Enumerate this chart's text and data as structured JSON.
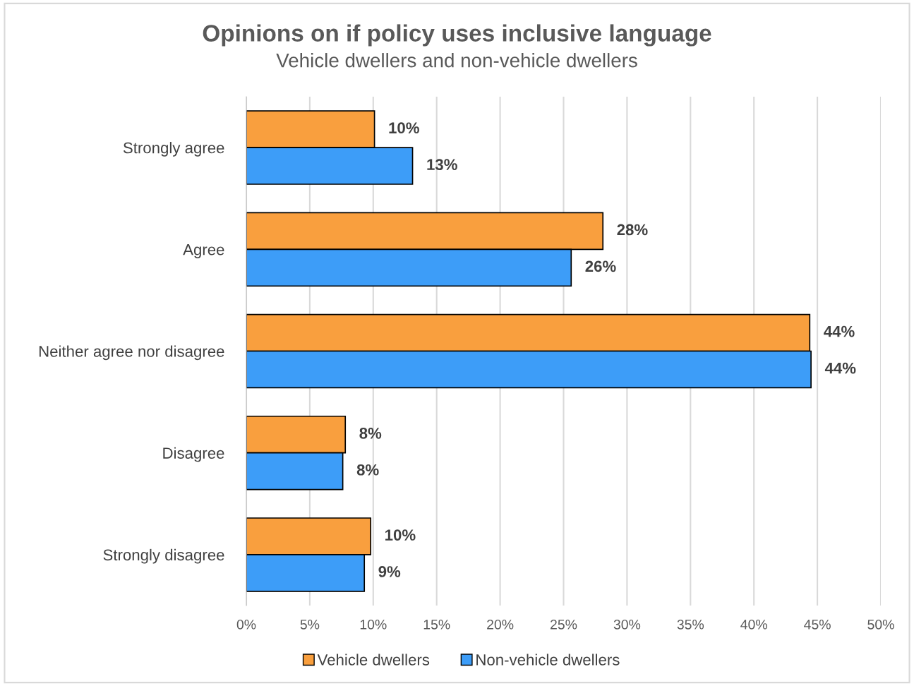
{
  "chart_data": {
    "type": "bar",
    "orientation": "horizontal",
    "title": "Opinions on if policy uses inclusive language",
    "subtitle": "Vehicle dwellers and non-vehicle dwellers",
    "categories": [
      "Strongly agree",
      "Agree",
      "Neither agree nor disagree",
      "Disagree",
      "Strongly disagree"
    ],
    "series": [
      {
        "name": "Vehicle dwellers",
        "color": "#f99f3e",
        "values": [
          10.1,
          28.1,
          44.4,
          7.8,
          9.8
        ],
        "value_labels": [
          "10%",
          "28%",
          "44%",
          "8%",
          "10%"
        ]
      },
      {
        "name": "Non-vehicle dwellers",
        "color": "#3d9df8",
        "values": [
          13.1,
          25.6,
          44.5,
          7.6,
          9.3
        ],
        "value_labels": [
          "13%",
          "26%",
          "44%",
          "8%",
          "9%"
        ]
      }
    ],
    "xlim": [
      0,
      50
    ],
    "xticks": [
      {
        "value": 0,
        "label": "0%"
      },
      {
        "value": 5,
        "label": "5%"
      },
      {
        "value": 10,
        "label": "10%"
      },
      {
        "value": 15,
        "label": "15%"
      },
      {
        "value": 20,
        "label": "20%"
      },
      {
        "value": 25,
        "label": "25%"
      },
      {
        "value": 30,
        "label": "30%"
      },
      {
        "value": 35,
        "label": "35%"
      },
      {
        "value": 40,
        "label": "40%"
      },
      {
        "value": 45,
        "label": "45%"
      },
      {
        "value": 50,
        "label": "50%"
      }
    ],
    "grid": "x",
    "legend": "bottom"
  }
}
